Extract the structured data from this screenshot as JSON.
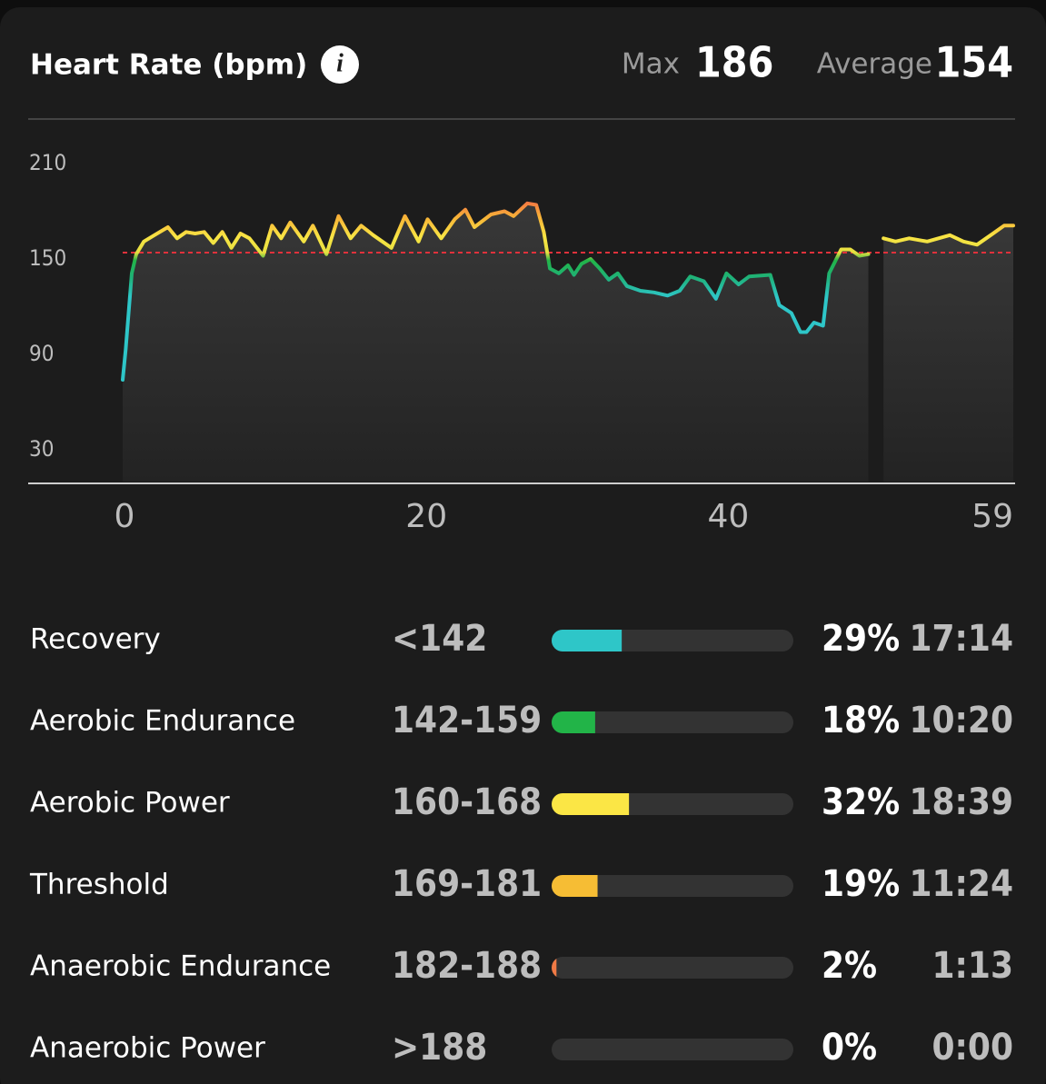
{
  "chart_data": [
    {
      "type": "line",
      "title": "Heart Rate (bpm)",
      "max_label": "Max",
      "max": 186,
      "average_label": "Average",
      "average": 154,
      "x": [
        0,
        0.2,
        0.6,
        0.9,
        1.4,
        2.1,
        3.0,
        3.6,
        4.2,
        4.8,
        5.4,
        6.0,
        6.6,
        7.2,
        7.8,
        8.4,
        9.3,
        9.9,
        10.5,
        11.1,
        12.0,
        12.6,
        13.5,
        14.3,
        15.1,
        15.8,
        16.6,
        17.8,
        18.7,
        19.6,
        20.2,
        21.1,
        22.0,
        22.7,
        23.3,
        24.4,
        25.3,
        25.9,
        26.8,
        27.4,
        27.9,
        28.3,
        28.9,
        29.5,
        29.9,
        30.4,
        31.0,
        31.6,
        32.2,
        32.8,
        33.4,
        34.3,
        35.2,
        36.1,
        36.9,
        37.6,
        38.5,
        39.3,
        40.0,
        40.8,
        41.5,
        42.9,
        43.5,
        44.3,
        44.9,
        45.3,
        45.8,
        46.4,
        46.8,
        47.6,
        48.2,
        48.8,
        49.4,
        49.9,
        50.4,
        51.2,
        52.1,
        53.3,
        54.8,
        55.7,
        56.6,
        57.5,
        58.4,
        59.0
      ],
      "values": [
        74,
        93,
        141,
        153,
        161,
        165,
        170,
        163,
        167,
        166,
        167,
        160,
        167,
        157,
        166,
        163,
        152,
        171,
        163,
        173,
        161,
        171,
        153,
        177,
        163,
        171,
        165,
        157,
        177,
        161,
        175,
        163,
        175,
        181,
        170,
        178,
        180,
        177,
        185,
        184,
        167,
        144,
        141,
        146,
        140,
        147,
        150,
        144,
        137,
        141,
        133,
        130,
        129,
        127,
        130,
        139,
        136,
        125,
        141,
        134,
        139,
        140,
        121,
        116,
        104,
        104,
        110,
        108,
        141,
        156,
        156,
        152,
        153,
        null,
        163,
        161,
        163,
        161,
        165,
        161,
        159,
        165,
        171,
        171
      ],
      "xlim": [
        0,
        59
      ],
      "xticks": [
        0,
        20,
        40,
        59
      ],
      "ylim": [
        10,
        210
      ],
      "yticks": [
        210,
        150,
        90,
        30
      ]
    },
    {
      "type": "bar",
      "categories": [
        "Recovery",
        "Aerobic Endurance",
        "Aerobic Power",
        "Threshold",
        "Anaerobic Endurance",
        "Anaerobic Power"
      ],
      "ranges": [
        "<142",
        "142-159",
        "160-168",
        "169-181",
        "182-188",
        ">188"
      ],
      "values": [
        29,
        18,
        32,
        19,
        2,
        0
      ],
      "value_labels": [
        "29%",
        "18%",
        "32%",
        "19%",
        "2%",
        "0%"
      ],
      "times": [
        "17:14",
        "10:20",
        "18:39",
        "11:24",
        "1:13",
        "0:00"
      ],
      "colors": [
        "#2ec6c8",
        "#22b448",
        "#fbe645",
        "#f6bd34",
        "#f07a45",
        "#f04a40"
      ],
      "xlim": [
        0,
        100
      ]
    }
  ]
}
